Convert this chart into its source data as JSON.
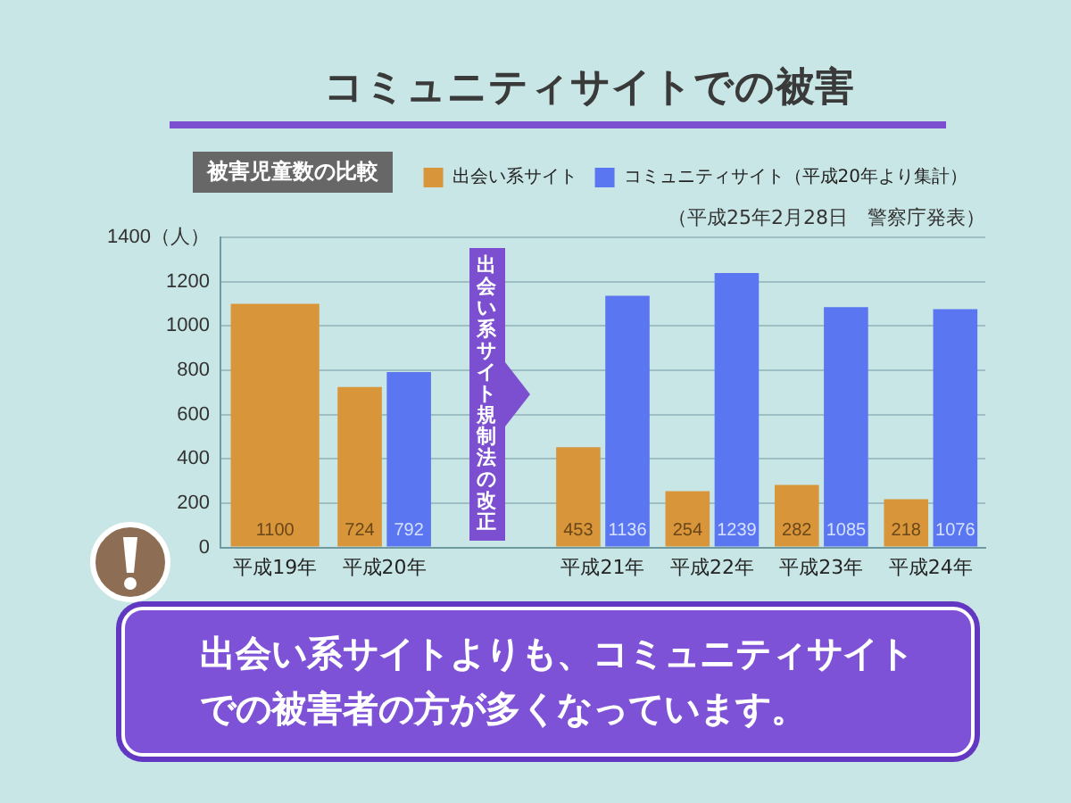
{
  "chart_data": {
    "type": "bar",
    "title": "コミュニティサイトでの被害",
    "subtitle": "被害児童数の比較",
    "categories": [
      "平成19年",
      "平成20年",
      null,
      "平成21年",
      "平成22年",
      "平成23年",
      "平成24年"
    ],
    "series": [
      {
        "name": "出会い系サイト",
        "color": "#d8953a",
        "values": [
          1100,
          724,
          null,
          453,
          254,
          282,
          218
        ]
      },
      {
        "name": "コミュニティサイト（平成20年より集計）",
        "color": "#5a76f0",
        "values": [
          null,
          792,
          null,
          1136,
          1239,
          1085,
          1076
        ]
      }
    ],
    "ylim": [
      0,
      1400
    ],
    "yticks": [
      0,
      200,
      400,
      600,
      800,
      1000,
      1200,
      {
        "value": 1400,
        "label": "1400（人）"
      }
    ],
    "grid": "y",
    "legend": "top right",
    "data_labels": true,
    "annotations": [
      "出会い系サイト規制法の改正",
      "（平成25年2月28日　警察庁発表）",
      "出会い系サイトよりも、コミュニティサイトでの被害者の方が多くなっています。"
    ]
  }
}
